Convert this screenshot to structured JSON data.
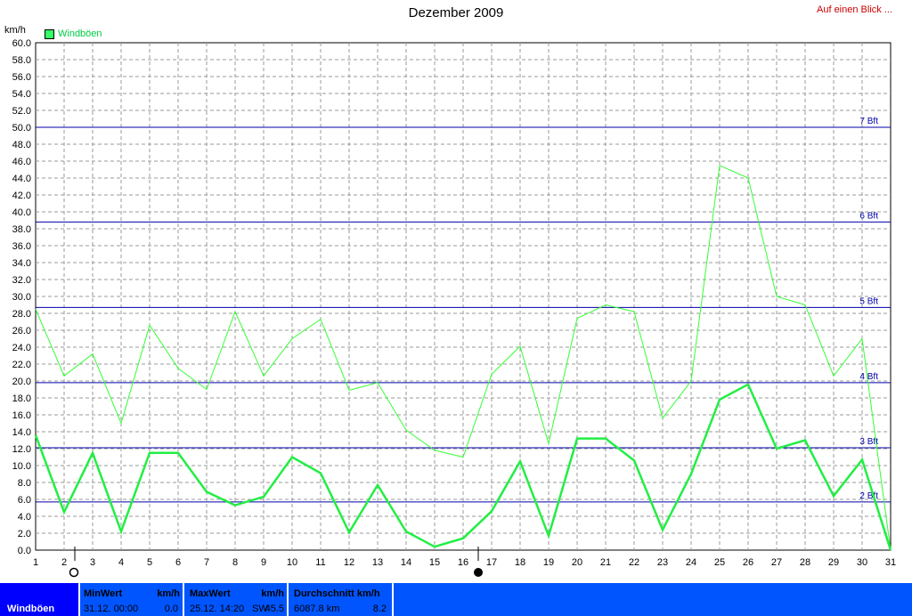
{
  "header": {
    "title": "Dezember 2009",
    "link": "Auf einen Blick ...",
    "unit": "km/h",
    "legend_label": "Windböen"
  },
  "chart_data": {
    "type": "line",
    "title": "Dezember 2009",
    "ylabel": "km/h",
    "xlabel": "",
    "ylim": [
      0,
      60
    ],
    "y_ticks": [
      "0.0",
      "2.0",
      "4.0",
      "6.0",
      "8.0",
      "10.0",
      "12.0",
      "14.0",
      "16.0",
      "18.0",
      "20.0",
      "22.0",
      "24.0",
      "26.0",
      "28.0",
      "30.0",
      "32.0",
      "34.0",
      "36.0",
      "38.0",
      "40.0",
      "42.0",
      "44.0",
      "46.0",
      "48.0",
      "50.0",
      "52.0",
      "54.0",
      "56.0",
      "58.0",
      "60.0"
    ],
    "x": [
      1,
      2,
      3,
      4,
      5,
      6,
      7,
      8,
      9,
      10,
      11,
      12,
      13,
      14,
      15,
      16,
      17,
      18,
      19,
      20,
      21,
      22,
      23,
      24,
      25,
      26,
      27,
      28,
      29,
      30,
      31
    ],
    "grid": true,
    "legend_position": "top-left",
    "series": [
      {
        "name": "Windböen",
        "role": "max",
        "color": "#33ff33",
        "width": 1,
        "values": [
          28.5,
          20.6,
          23.2,
          15.0,
          26.6,
          21.5,
          19.0,
          28.2,
          20.6,
          25.0,
          27.3,
          18.9,
          19.8,
          14.2,
          11.8,
          11.0,
          20.8,
          24.1,
          12.6,
          27.4,
          29.0,
          28.2,
          15.6,
          20.0,
          45.5,
          44.0,
          30.0,
          29.0,
          20.6,
          25.0,
          0.0
        ]
      },
      {
        "role": "avg",
        "color": "#22ee44",
        "width": 2.5,
        "values": [
          13.6,
          4.5,
          11.5,
          2.2,
          11.5,
          11.5,
          6.9,
          5.3,
          6.3,
          11.0,
          9.1,
          2.1,
          7.7,
          2.2,
          0.4,
          1.4,
          4.6,
          10.5,
          1.7,
          13.2,
          13.2,
          10.6,
          2.4,
          9.0,
          17.8,
          19.6,
          12.0,
          13.0,
          6.4,
          10.7,
          0.0
        ]
      }
    ],
    "beaufort_lines": [
      {
        "label": "2 Bft",
        "value": 5.7
      },
      {
        "label": "3 Bft",
        "value": 12.1
      },
      {
        "label": "4 Bft",
        "value": 19.8
      },
      {
        "label": "5 Bft",
        "value": 28.7
      },
      {
        "label": "6 Bft",
        "value": 38.8
      },
      {
        "label": "7 Bft",
        "value": 50.0
      }
    ],
    "line_color": "#0000aa",
    "grid_color": "#9a9a9a"
  },
  "status": {
    "name": "Windböen",
    "min_header": "MinWert",
    "min_unit": "km/h",
    "min_time": "31.12.  00:00",
    "min_value": "0.0",
    "max_header": "MaxWert",
    "max_unit": "km/h",
    "max_time": "25.12.  14:20",
    "max_dir": "SW",
    "max_value": "45.5",
    "avg_header": "Durchschnitt km/h",
    "avg_dist": "6087.8 km",
    "avg_value": "8.2"
  }
}
